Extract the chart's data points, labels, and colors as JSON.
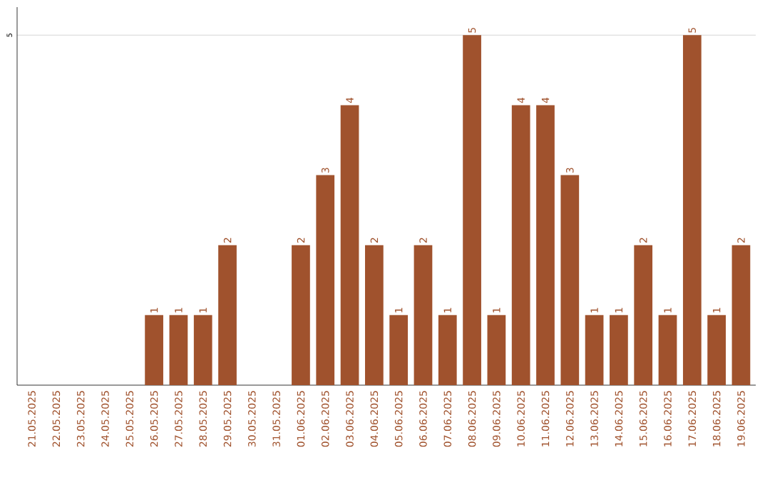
{
  "chart_data": {
    "type": "bar",
    "categories": [
      "21.05.2025",
      "22.05.2025",
      "23.05.2025",
      "24.05.2025",
      "25.05.2025",
      "26.05.2025",
      "27.05.2025",
      "28.05.2025",
      "29.05.2025",
      "30.05.2025",
      "31.05.2025",
      "01.06.2025",
      "02.06.2025",
      "03.06.2025",
      "04.06.2025",
      "05.06.2025",
      "06.06.2025",
      "07.06.2025",
      "08.06.2025",
      "09.06.2025",
      "10.06.2025",
      "11.06.2025",
      "12.06.2025",
      "13.06.2025",
      "14.06.2025",
      "15.06.2025",
      "16.06.2025",
      "17.06.2025",
      "18.06.2025",
      "19.06.2025"
    ],
    "values": [
      0,
      0,
      0,
      0,
      0,
      1,
      1,
      1,
      2,
      0,
      0,
      2,
      3,
      4,
      2,
      1,
      2,
      1,
      5,
      1,
      4,
      4,
      3,
      1,
      1,
      2,
      1,
      5,
      1,
      2
    ],
    "value_labels": [
      null,
      null,
      null,
      null,
      null,
      "1",
      "1",
      "1",
      "2",
      null,
      null,
      "2",
      "3",
      "4",
      "2",
      "1",
      "2",
      "1",
      "5",
      "1",
      "4",
      "4",
      "3",
      "1",
      "1",
      "2",
      "1",
      "5",
      "1",
      "2"
    ],
    "color": "#a0522d",
    "ylim": [
      0,
      5.4
    ],
    "yticks": [
      5
    ],
    "grid": "y"
  }
}
